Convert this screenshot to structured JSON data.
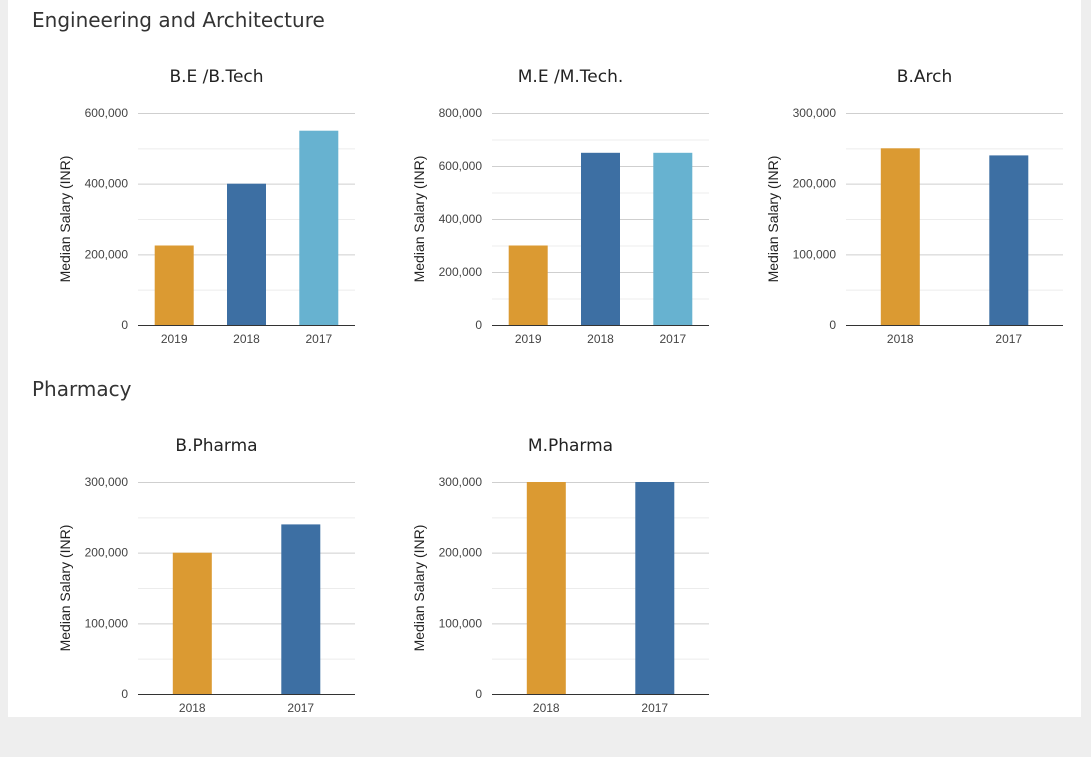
{
  "sections": [
    {
      "title": "Engineering and Architecture"
    },
    {
      "title": "Pharmacy"
    }
  ],
  "colors": {
    "bar_2019": "#db9a32",
    "bar_2018": "#3d6fa3",
    "bar_2017": "#67b2d0",
    "pharma_2018": "#db9a32",
    "pharma_2017": "#3d6fa3"
  },
  "chart_data": [
    {
      "type": "bar",
      "title": "B.E /B.Tech",
      "ylabel": "Median Salary (INR)",
      "categories": [
        "2019",
        "2018",
        "2017"
      ],
      "values": [
        225000,
        400000,
        550000
      ],
      "bar_colors": [
        "#db9a32",
        "#3d6fa3",
        "#67b2d0"
      ],
      "ylim": [
        0,
        600000
      ],
      "yticks": [
        0,
        200000,
        400000,
        600000
      ],
      "ytick_labels": [
        "0",
        "200,000",
        "400,000",
        "600,000"
      ],
      "grid": true
    },
    {
      "type": "bar",
      "title": "M.E /M.Tech.",
      "ylabel": "Median Salary (INR)",
      "categories": [
        "2019",
        "2018",
        "2017"
      ],
      "values": [
        300000,
        650000,
        650000
      ],
      "bar_colors": [
        "#db9a32",
        "#3d6fa3",
        "#67b2d0"
      ],
      "ylim": [
        0,
        800000
      ],
      "yticks": [
        0,
        200000,
        400000,
        600000,
        800000
      ],
      "ytick_labels": [
        "0",
        "200,000",
        "400,000",
        "600,000",
        "800,000"
      ],
      "grid": true
    },
    {
      "type": "bar",
      "title": "B.Arch",
      "ylabel": "Median Salary (INR)",
      "categories": [
        "2018",
        "2017"
      ],
      "values": [
        250000,
        240000
      ],
      "bar_colors": [
        "#db9a32",
        "#3d6fa3"
      ],
      "ylim": [
        0,
        300000
      ],
      "yticks": [
        0,
        100000,
        200000,
        300000
      ],
      "ytick_labels": [
        "0",
        "100,000",
        "200,000",
        "300,000"
      ],
      "grid": true
    },
    {
      "type": "bar",
      "title": "B.Pharma",
      "ylabel": "Median Salary (INR)",
      "categories": [
        "2018",
        "2017"
      ],
      "values": [
        200000,
        240000
      ],
      "bar_colors": [
        "#db9a32",
        "#3d6fa3"
      ],
      "ylim": [
        0,
        300000
      ],
      "yticks": [
        0,
        100000,
        200000,
        300000
      ],
      "ytick_labels": [
        "0",
        "100,000",
        "200,000",
        "300,000"
      ],
      "grid": true
    },
    {
      "type": "bar",
      "title": "M.Pharma",
      "ylabel": "Median Salary (INR)",
      "categories": [
        "2018",
        "2017"
      ],
      "values": [
        300000,
        300000
      ],
      "bar_colors": [
        "#db9a32",
        "#3d6fa3"
      ],
      "ylim": [
        0,
        300000
      ],
      "yticks": [
        0,
        100000,
        200000,
        300000
      ],
      "ytick_labels": [
        "0",
        "100,000",
        "200,000",
        "300,000"
      ],
      "grid": true
    }
  ]
}
